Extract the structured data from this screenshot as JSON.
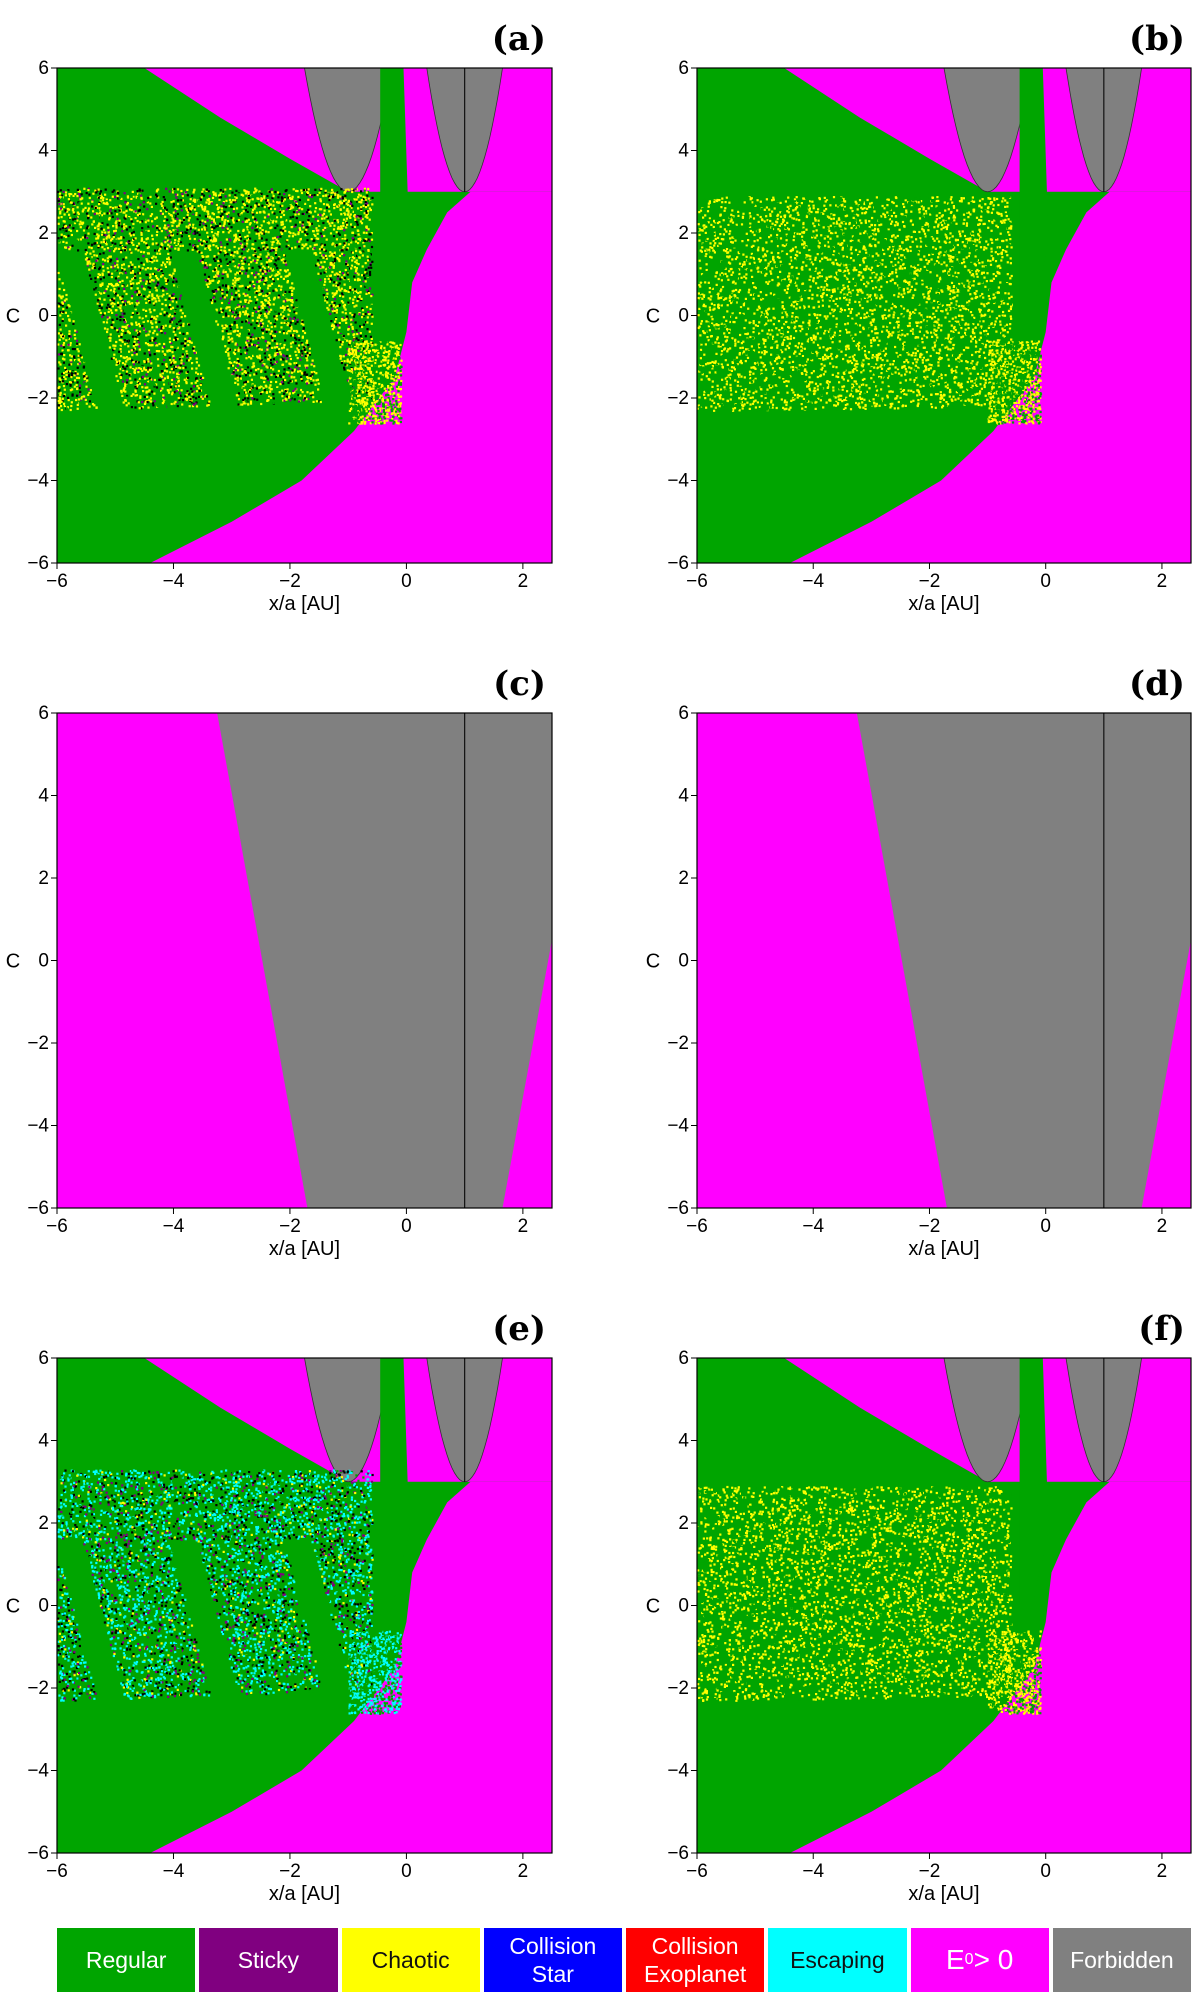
{
  "chart_data": [
    {
      "panel": "(a)",
      "type": "heatmap",
      "xlabel": "x/a [AU]",
      "ylabel": "C",
      "xlim": [
        -6,
        2.5
      ],
      "ylim": [
        -6,
        6
      ],
      "xticks": [
        -6,
        -4,
        -2,
        0,
        2
      ],
      "yticks": [
        -6,
        -4,
        -2,
        0,
        2,
        4,
        6
      ],
      "grid": false,
      "dominant_regions": [
        "Regular",
        "Chaotic",
        "Collision Star",
        "Collision Exoplanet",
        "E0 > 0",
        "Forbidden"
      ]
    },
    {
      "panel": "(b)",
      "type": "heatmap",
      "xlabel": "x/a [AU]",
      "ylabel": "C",
      "xlim": [
        -6,
        2.5
      ],
      "ylim": [
        -6,
        6
      ],
      "xticks": [
        -6,
        -4,
        -2,
        0,
        2
      ],
      "yticks": [
        -6,
        -4,
        -2,
        0,
        2,
        4,
        6
      ],
      "grid": false,
      "dominant_regions": [
        "Regular",
        "Chaotic",
        "Collision Star",
        "Collision Exoplanet",
        "E0 > 0",
        "Forbidden"
      ]
    },
    {
      "panel": "(c)",
      "type": "heatmap",
      "xlabel": "x/a [AU]",
      "ylabel": "C",
      "xlim": [
        -6,
        2.5
      ],
      "ylim": [
        -6,
        6
      ],
      "xticks": [
        -6,
        -4,
        -2,
        0,
        2
      ],
      "yticks": [
        -6,
        -4,
        -2,
        0,
        2,
        4,
        6
      ],
      "grid": false,
      "dominant_regions": [
        "E0 > 0",
        "Forbidden"
      ]
    },
    {
      "panel": "(d)",
      "type": "heatmap",
      "xlabel": "x/a [AU]",
      "ylabel": "C",
      "xlim": [
        -6,
        2.5
      ],
      "ylim": [
        -6,
        6
      ],
      "xticks": [
        -6,
        -4,
        -2,
        0,
        2
      ],
      "yticks": [
        -6,
        -4,
        -2,
        0,
        2,
        4,
        6
      ],
      "grid": false,
      "dominant_regions": [
        "E0 > 0",
        "Forbidden"
      ]
    },
    {
      "panel": "(e)",
      "type": "heatmap",
      "xlabel": "x/a [AU]",
      "ylabel": "C",
      "xlim": [
        -6,
        2.5
      ],
      "ylim": [
        -6,
        6
      ],
      "xticks": [
        -6,
        -4,
        -2,
        0,
        2
      ],
      "yticks": [
        -6,
        -4,
        -2,
        0,
        2,
        4,
        6
      ],
      "grid": false,
      "dominant_regions": [
        "Regular",
        "Chaotic",
        "Collision Star",
        "Collision Exoplanet",
        "Escaping",
        "E0 > 0",
        "Forbidden"
      ]
    },
    {
      "panel": "(f)",
      "type": "heatmap",
      "xlabel": "x/a [AU]",
      "ylabel": "C",
      "xlim": [
        -6,
        2.5
      ],
      "ylim": [
        -6,
        6
      ],
      "xticks": [
        -6,
        -4,
        -2,
        0,
        2
      ],
      "yticks": [
        -6,
        -4,
        -2,
        0,
        2,
        4,
        6
      ],
      "grid": false,
      "dominant_regions": [
        "Regular",
        "Chaotic",
        "Collision Star",
        "Collision Exoplanet",
        "E0 > 0",
        "Forbidden"
      ]
    }
  ],
  "legend": [
    {
      "label": "Regular",
      "color": "#00a500"
    },
    {
      "label": "Sticky",
      "color": "#800080"
    },
    {
      "label": "Chaotic",
      "color": "#ffff00"
    },
    {
      "label": "Collision\nStar",
      "color": "#0000ff"
    },
    {
      "label": "Collision\nExoplanet",
      "color": "#ff0000"
    },
    {
      "label": "Escaping",
      "color": "#00ffff"
    },
    {
      "label": "E0 > 0",
      "label_main": "E",
      "label_sub": "0",
      "label_rest": " > 0",
      "color": "#ff00ff"
    },
    {
      "label": "Forbidden",
      "color": "#808080"
    }
  ]
}
